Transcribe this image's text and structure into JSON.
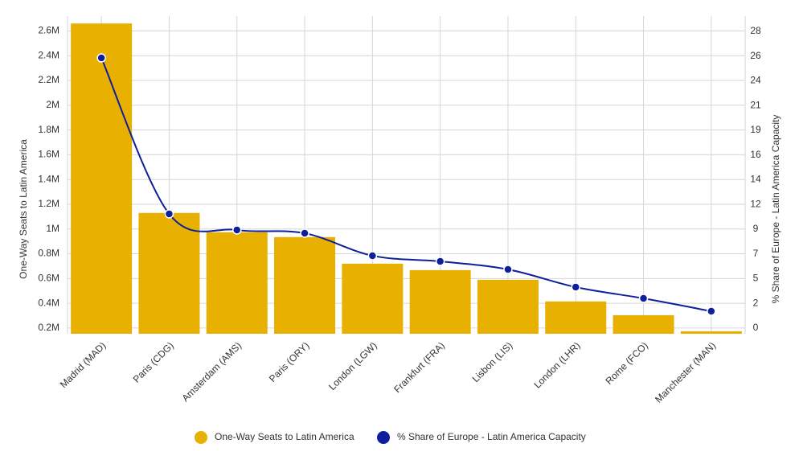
{
  "chart_data": {
    "type": "bar-line",
    "categories": [
      "Madrid (MAD)",
      "Paris (CDG)",
      "Amsterdam (AMS)",
      "Paris (ORY)",
      "London (LGW)",
      "Frankfurt (FRA)",
      "Lisbon (LIS)",
      "London (LHR)",
      "Rome (FCO)",
      "Manchester (MAN)"
    ],
    "series": [
      {
        "name": "One-Way Seats to Latin America",
        "color": "#e8b000",
        "type": "bar",
        "axis": "y",
        "values": [
          2660000,
          1130000,
          974000,
          935000,
          720000,
          668000,
          590000,
          415000,
          304000,
          174000
        ]
      },
      {
        "name": "% Share of Europe - Latin America Capacity",
        "color": "#0d1f9c",
        "type": "line",
        "axis": "y2",
        "values": [
          25.71,
          10.87,
          9.34,
          9.03,
          6.89,
          6.35,
          5.59,
          3.9,
          2.83,
          1.61
        ]
      }
    ],
    "ylabel": "One-Way Seats to Latin America",
    "y2label": "% Share of Europe - Latin America Capacity",
    "ylim": [
      154000,
      2720000
    ],
    "yticks": [
      {
        "value": 200000,
        "label": "0.2M"
      },
      {
        "value": 400000,
        "label": "0.4M"
      },
      {
        "value": 600000,
        "label": "0.6M"
      },
      {
        "value": 800000,
        "label": "0.8M"
      },
      {
        "value": 1000000,
        "label": "1M"
      },
      {
        "value": 1200000,
        "label": "1.2M"
      },
      {
        "value": 1400000,
        "label": "1.4M"
      },
      {
        "value": 1600000,
        "label": "1.6M"
      },
      {
        "value": 1800000,
        "label": "1.8M"
      },
      {
        "value": 2000000,
        "label": "2M"
      },
      {
        "value": 2200000,
        "label": "2.2M"
      },
      {
        "value": 2400000,
        "label": "2.4M"
      },
      {
        "value": 2600000,
        "label": "2.6M"
      }
    ],
    "y2lim": [
      -0.536,
      29.69
    ],
    "y2ticks": [
      0,
      {
        "value": 2.353,
        "label": "2"
      },
      {
        "value": 4.706,
        "label": "5"
      },
      {
        "value": 7.059,
        "label": "7"
      },
      {
        "value": 9.412,
        "label": "9"
      },
      {
        "value": 11.765,
        "label": "12"
      },
      {
        "value": 14.118,
        "label": "14"
      },
      {
        "value": 16.471,
        "label": "16"
      },
      {
        "value": 18.824,
        "label": "19"
      },
      {
        "value": 21.177,
        "label": "21"
      },
      {
        "value": 23.53,
        "label": "24"
      },
      {
        "value": 25.883,
        "label": "26"
      },
      {
        "value": 28.236,
        "label": "28"
      }
    ],
    "grid": true
  }
}
